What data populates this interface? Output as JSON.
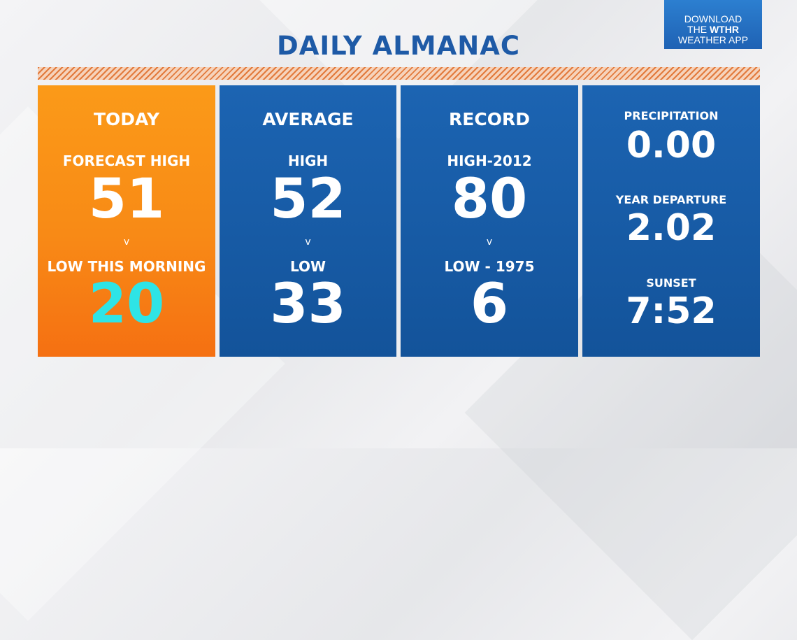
{
  "title": "DAILY ALMANAC",
  "app_promo": {
    "line1": "DOWNLOAD",
    "line2_prefix": "THE ",
    "brand": "WTHR",
    "line3": "WEATHER APP"
  },
  "panels": {
    "today": {
      "heading": "TODAY",
      "label1": "FORECAST HIGH",
      "value1": "51",
      "arrow": "v",
      "label2": "LOW THIS MORNING",
      "value2": "20"
    },
    "average": {
      "heading": "AVERAGE",
      "label1": "HIGH",
      "value1": "52",
      "arrow": "v",
      "label2": "LOW",
      "value2": "33"
    },
    "record": {
      "heading": "RECORD",
      "label1": "HIGH-2012",
      "value1": "80",
      "arrow": "v",
      "label2": "LOW - 1975",
      "value2": "6"
    },
    "misc": {
      "precip_label": "PRECIPITATION",
      "precip_value": "0.00",
      "departure_label": "YEAR DEPARTURE",
      "departure_value": "2.02",
      "sunset_label": "SUNSET",
      "sunset_value": "7:52"
    }
  },
  "colors": {
    "title": "#1e5aa6",
    "today_bg": "#f88a16",
    "panel_bg": "#1a5ea8",
    "low_value": "#2ee4e6"
  }
}
